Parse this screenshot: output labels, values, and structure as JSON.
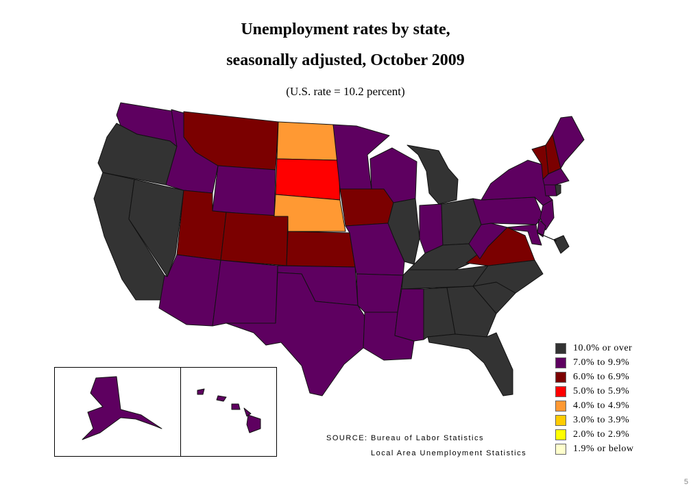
{
  "title_line1": "Unemployment rates by state,",
  "title_line2": "seasonally adjusted, October 2009",
  "subtitle": "(U.S. rate = 10.2 percent)",
  "source": {
    "label": "SOURCE:",
    "line1": "Bureau of Labor Statistics",
    "line2": "Local Area Unemployment Statistics"
  },
  "legend": [
    {
      "label": "10.0% or over",
      "color": "#333333"
    },
    {
      "label": "7.0% to 9.9%",
      "color": "#5e0060"
    },
    {
      "label": "6.0% to 6.9%",
      "color": "#7b0000"
    },
    {
      "label": "5.0% to 5.9%",
      "color": "#ff0000"
    },
    {
      "label": "4.0% to 4.9%",
      "color": "#ff9933"
    },
    {
      "label": "3.0% to 3.9%",
      "color": "#ffcc00"
    },
    {
      "label": "2.0% to 2.9%",
      "color": "#ffff00"
    },
    {
      "label": "1.9% or below",
      "color": "#ffffcc"
    }
  ],
  "page_number": "5",
  "state_categories": {
    "WA": "7.0% to 9.9%",
    "OR": "10.0% or over",
    "CA": "10.0% or over",
    "NV": "10.0% or over",
    "ID": "7.0% to 9.9%",
    "MT": "6.0% to 6.9%",
    "WY": "7.0% to 9.9%",
    "UT": "6.0% to 6.9%",
    "AZ": "7.0% to 9.9%",
    "CO": "6.0% to 6.9%",
    "NM": "7.0% to 9.9%",
    "ND": "4.0% to 4.9%",
    "SD": "5.0% to 5.9%",
    "NE": "4.0% to 4.9%",
    "KS": "6.0% to 6.9%",
    "OK": "7.0% to 9.9%",
    "TX": "7.0% to 9.9%",
    "MN": "7.0% to 9.9%",
    "IA": "6.0% to 6.9%",
    "MO": "7.0% to 9.9%",
    "AR": "7.0% to 9.9%",
    "LA": "7.0% to 9.9%",
    "WI": "7.0% to 9.9%",
    "IL": "10.0% or over",
    "MI": "10.0% or over",
    "IN": "7.0% to 9.9%",
    "OH": "10.0% or over",
    "KY": "10.0% or over",
    "TN": "10.0% or over",
    "MS": "7.0% to 9.9%",
    "AL": "10.0% or over",
    "GA": "10.0% or over",
    "FL": "10.0% or over",
    "SC": "10.0% or over",
    "NC": "10.0% or over",
    "VA": "6.0% to 6.9%",
    "WV": "7.0% to 9.9%",
    "PA": "7.0% to 9.9%",
    "NY": "7.0% to 9.9%",
    "VT": "6.0% to 6.9%",
    "NH": "6.0% to 6.9%",
    "ME": "7.0% to 9.9%",
    "MA": "7.0% to 9.9%",
    "CT": "7.0% to 9.9%",
    "RI": "10.0% or over",
    "NJ": "7.0% to 9.9%",
    "DE": "7.0% to 9.9%",
    "MD": "7.0% to 9.9%",
    "DC": "10.0% or over",
    "AK": "7.0% to 9.9%",
    "HI": "7.0% to 9.9%"
  }
}
